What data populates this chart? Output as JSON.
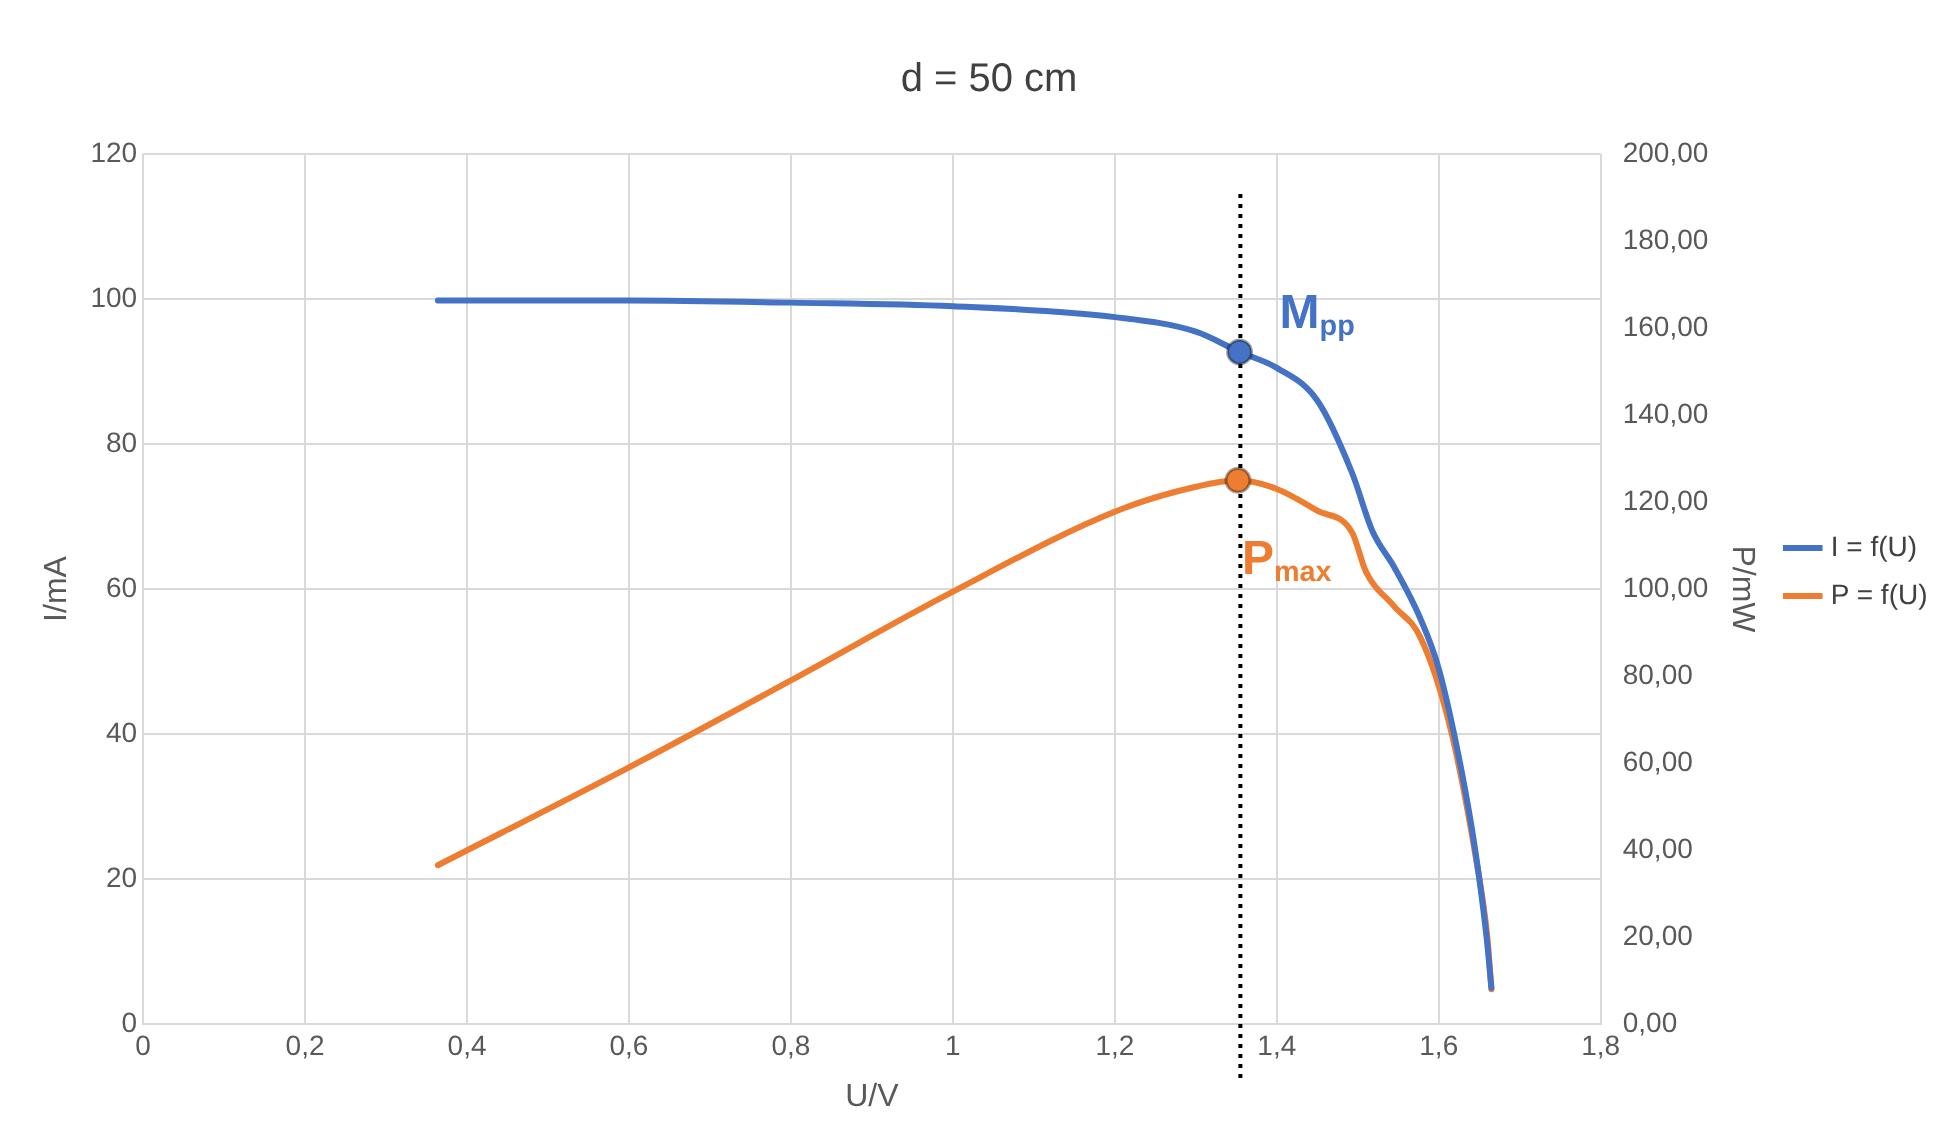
{
  "chart_data": {
    "type": "line",
    "title": "d = 50 cm",
    "xlabel": "U/V",
    "ylabel": "I/mA",
    "y2label": "P/mW",
    "xlim": [
      0,
      1.8
    ],
    "xticks": [
      0,
      {
        "value": 0.2,
        "label": "0,2"
      },
      {
        "value": 0.4,
        "label": "0,4"
      },
      {
        "value": 0.6,
        "label": "0,6"
      },
      {
        "value": 0.8,
        "label": "0,8"
      },
      1,
      {
        "value": 1.2,
        "label": "1,2"
      },
      {
        "value": 1.4,
        "label": "1,4"
      },
      {
        "value": 1.6,
        "label": "1,6"
      },
      {
        "value": 1.8,
        "label": "1,8"
      }
    ],
    "ylim": [
      0,
      120
    ],
    "yticks": [
      0,
      20,
      40,
      60,
      80,
      100,
      120
    ],
    "y2lim": [
      0,
      200
    ],
    "y2ticks": [
      {
        "value": 0,
        "label": "0,00"
      },
      {
        "value": 20,
        "label": "20,00"
      },
      {
        "value": 40,
        "label": "40,00"
      },
      {
        "value": 60,
        "label": "60,00"
      },
      {
        "value": 80,
        "label": "80,00"
      },
      {
        "value": 100,
        "label": "100,00"
      },
      {
        "value": 120,
        "label": "120,00"
      },
      {
        "value": 140,
        "label": "140,00"
      },
      {
        "value": 160,
        "label": "160,00"
      },
      {
        "value": 180,
        "label": "180,00"
      },
      {
        "value": 200,
        "label": "200,00"
      }
    ],
    "series": [
      {
        "name": "I = f(U)",
        "color": "#4472c4",
        "x": [
          0.364,
          0.6,
          0.8,
          1.0,
          1.2,
          1.3,
          1.354,
          1.4,
          1.45,
          1.493,
          1.518,
          1.545,
          1.577,
          1.6,
          1.628,
          1.645,
          1.659,
          1.665
        ],
        "values": [
          99.8,
          99.8,
          99.5,
          99,
          97.5,
          95.5,
          92.7,
          90.5,
          86,
          76,
          68,
          63,
          56,
          49,
          35,
          24,
          12,
          5
        ]
      },
      {
        "name": "P = f(U)",
        "color": "#ed7d31",
        "axis": "y2",
        "x": [
          0.364,
          0.6,
          0.8,
          0.996,
          1.203,
          1.3,
          1.352,
          1.4,
          1.45,
          1.493,
          1.51,
          1.545,
          1.577,
          1.613,
          1.646,
          1.66,
          1.665
        ],
        "values": [
          36.5,
          59,
          79,
          99,
          118,
          123.5,
          125,
          123,
          118,
          113,
          104,
          96,
          89,
          69,
          38,
          20,
          8
        ]
      }
    ],
    "annotations": [
      {
        "text": "M$_{pp}$",
        "x": 1.354,
        "y": 92.7
      },
      {
        "text": "P$_{max}$",
        "x": 1.352,
        "y": 75
      }
    ],
    "ref_lines": [
      {
        "axis": "x",
        "value": 1.355,
        "color": "#000000",
        "line_style": "dotted"
      }
    ],
    "grid": true,
    "legend": "right",
    "marker": "none",
    "line_style": "solid"
  }
}
